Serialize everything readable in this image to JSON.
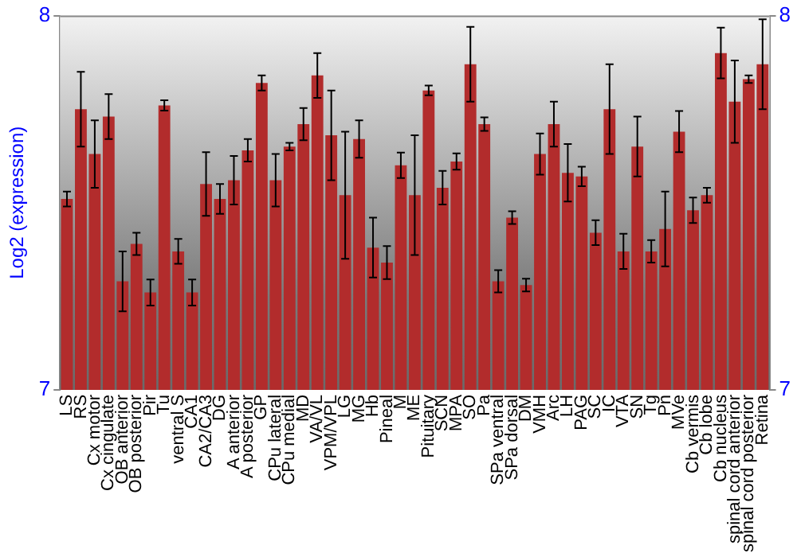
{
  "chart_data": {
    "type": "bar",
    "ylabel": "Log2 (expression)",
    "categories": [
      "LS",
      "RS",
      "Cx motor",
      "Cx cingulate",
      "OB anterior",
      "OB posterior",
      "Pir",
      "Tu",
      "ventral S",
      "CA1",
      "CA2/CA3",
      "DG",
      "A anterior",
      "A posterior",
      "GP",
      "CPu lateral",
      "CPu medial",
      "MD",
      "VA/VL",
      "VPM/VPL",
      "LG",
      "MG",
      "Hb",
      "Pineal",
      "M",
      "ME",
      "Pituitary",
      "SCN",
      "MPA",
      "SO",
      "Pa",
      "SPa ventral",
      "SPa dorsal",
      "DM",
      "VMH",
      "Arc",
      "LH",
      "PAG",
      "SC",
      "IC",
      "VTA",
      "SN",
      "Tg",
      "Pn",
      "MVe",
      "Cb vermis",
      "Cb lobe",
      "Cb nucleus",
      "spinal cord anterior",
      "spinal cord posterior",
      "Retina"
    ],
    "values": [
      7.51,
      7.75,
      7.63,
      7.73,
      7.29,
      7.39,
      7.26,
      7.76,
      7.37,
      7.26,
      7.55,
      7.51,
      7.56,
      7.64,
      7.82,
      7.56,
      7.65,
      7.71,
      7.84,
      7.68,
      7.52,
      7.67,
      7.38,
      7.34,
      7.6,
      7.52,
      7.8,
      7.54,
      7.61,
      7.87,
      7.71,
      7.29,
      7.46,
      7.28,
      7.63,
      7.71,
      7.58,
      7.57,
      7.42,
      7.75,
      7.37,
      7.65,
      7.37,
      7.43,
      7.69,
      7.48,
      7.52,
      7.9,
      7.77,
      7.83,
      7.87
    ],
    "errors": [
      0.02,
      0.1,
      0.09,
      0.06,
      0.08,
      0.03,
      0.035,
      0.014,
      0.033,
      0.035,
      0.085,
      0.04,
      0.065,
      0.03,
      0.02,
      0.07,
      0.01,
      0.043,
      0.06,
      0.12,
      0.17,
      0.05,
      0.08,
      0.044,
      0.034,
      0.16,
      0.013,
      0.045,
      0.022,
      0.1,
      0.018,
      0.03,
      0.017,
      0.017,
      0.055,
      0.06,
      0.077,
      0.026,
      0.033,
      0.12,
      0.047,
      0.08,
      0.03,
      0.1,
      0.055,
      0.034,
      0.02,
      0.068,
      0.11,
      0.01,
      0.12
    ],
    "color": "#b22c2c",
    "ylim": [
      7,
      8
    ],
    "yticks": [
      7,
      8
    ],
    "y2lim": [
      7,
      8
    ],
    "y2ticks": [
      7,
      8
    ],
    "grid": false,
    "legend": false
  }
}
